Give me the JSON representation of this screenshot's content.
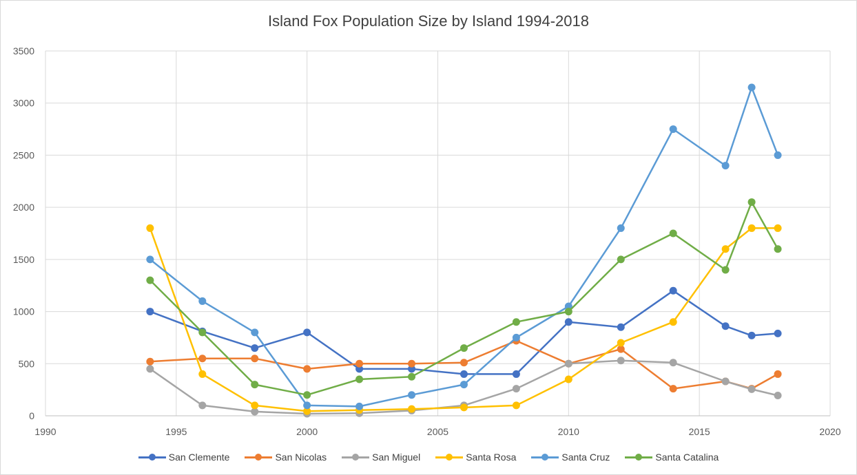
{
  "chart_data": {
    "type": "line",
    "title": "Island Fox Population Size by Island 1994-2018",
    "xlabel": "",
    "ylabel": "",
    "xlim": [
      1990,
      2020
    ],
    "ylim": [
      0,
      3500
    ],
    "x_ticks": [
      1990,
      1995,
      2000,
      2005,
      2010,
      2015,
      2020
    ],
    "y_ticks": [
      0,
      500,
      1000,
      1500,
      2000,
      2500,
      3000,
      3500
    ],
    "grid": true,
    "legend_position": "bottom",
    "series": [
      {
        "name": "San Clemente",
        "color": "#4472c4",
        "points": [
          [
            1994,
            1000
          ],
          [
            1996,
            810
          ],
          [
            1998,
            650
          ],
          [
            2000,
            800
          ],
          [
            2002,
            450
          ],
          [
            2004,
            450
          ],
          [
            2006,
            400
          ],
          [
            2008,
            400
          ],
          [
            2010,
            900
          ],
          [
            2012,
            850
          ],
          [
            2014,
            1200
          ],
          [
            2016,
            860
          ],
          [
            2017,
            770
          ],
          [
            2018,
            790
          ]
        ]
      },
      {
        "name": "San Nicolas",
        "color": "#ed7d31",
        "points": [
          [
            1994,
            520
          ],
          [
            1996,
            550
          ],
          [
            1998,
            550
          ],
          [
            2000,
            450
          ],
          [
            2002,
            500
          ],
          [
            2004,
            500
          ],
          [
            2006,
            510
          ],
          [
            2008,
            720
          ],
          [
            2010,
            500
          ],
          [
            2012,
            640
          ],
          [
            2014,
            260
          ],
          [
            2016,
            330
          ],
          [
            2017,
            260
          ],
          [
            2018,
            400
          ]
        ]
      },
      {
        "name": "San Miguel",
        "color": "#a5a5a5",
        "points": [
          [
            1994,
            450
          ],
          [
            1996,
            100
          ],
          [
            1998,
            40
          ],
          [
            2000,
            20
          ],
          [
            2002,
            25
          ],
          [
            2004,
            50
          ],
          [
            2006,
            100
          ],
          [
            2008,
            260
          ],
          [
            2010,
            500
          ],
          [
            2012,
            530
          ],
          [
            2014,
            510
          ],
          [
            2016,
            330
          ],
          [
            2017,
            255
          ],
          [
            2018,
            195
          ]
        ]
      },
      {
        "name": "Santa Rosa",
        "color": "#ffc000",
        "points": [
          [
            1994,
            1800
          ],
          [
            1996,
            400
          ],
          [
            1998,
            100
          ],
          [
            2000,
            45
          ],
          [
            2002,
            55
          ],
          [
            2004,
            65
          ],
          [
            2006,
            80
          ],
          [
            2008,
            100
          ],
          [
            2010,
            350
          ],
          [
            2012,
            700
          ],
          [
            2014,
            900
          ],
          [
            2016,
            1600
          ],
          [
            2017,
            1800
          ],
          [
            2018,
            1800
          ]
        ]
      },
      {
        "name": "Santa Cruz",
        "color": "#5b9bd5",
        "points": [
          [
            1994,
            1500
          ],
          [
            1996,
            1100
          ],
          [
            1998,
            800
          ],
          [
            2000,
            100
          ],
          [
            2002,
            90
          ],
          [
            2004,
            200
          ],
          [
            2006,
            300
          ],
          [
            2008,
            750
          ],
          [
            2010,
            1050
          ],
          [
            2012,
            1800
          ],
          [
            2014,
            2750
          ],
          [
            2016,
            2400
          ],
          [
            2017,
            3150
          ],
          [
            2018,
            2500
          ]
        ]
      },
      {
        "name": "Santa Catalina",
        "color": "#70ad47",
        "points": [
          [
            1994,
            1300
          ],
          [
            1996,
            800
          ],
          [
            1998,
            300
          ],
          [
            2000,
            200
          ],
          [
            2002,
            350
          ],
          [
            2004,
            375
          ],
          [
            2006,
            650
          ],
          [
            2008,
            900
          ],
          [
            2010,
            1000
          ],
          [
            2012,
            1500
          ],
          [
            2014,
            1750
          ],
          [
            2016,
            1400
          ],
          [
            2017,
            2050
          ],
          [
            2018,
            1600
          ]
        ]
      }
    ]
  }
}
